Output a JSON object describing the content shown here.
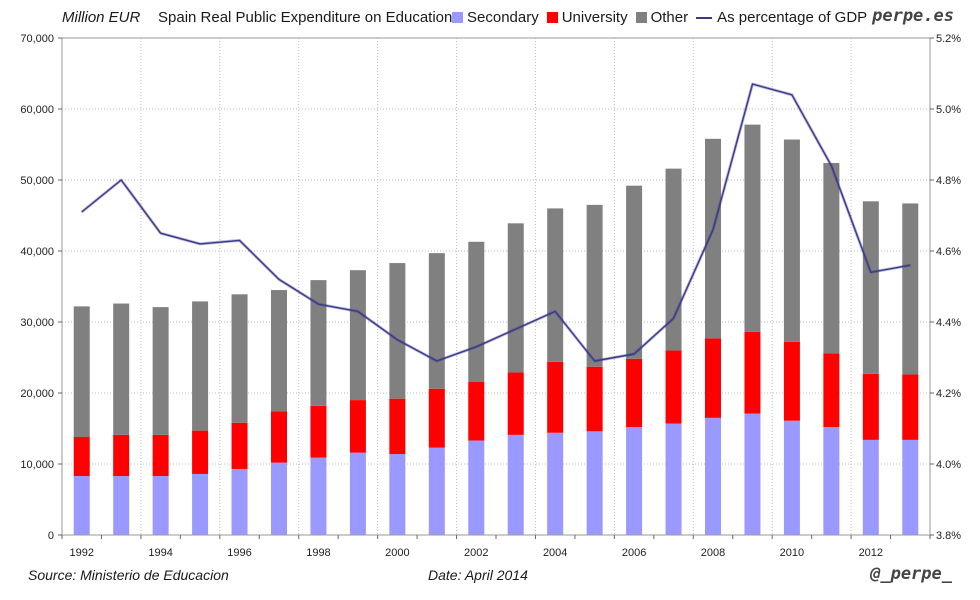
{
  "header": {
    "unit": "Million EUR",
    "title": "Spain Real Public Expenditure on Education",
    "brand": "perpe.es"
  },
  "footer": {
    "source": "Source: Ministerio de Educacion",
    "date": "Date: April 2014",
    "handle": "@_perpe_"
  },
  "legend": [
    {
      "label": "Secondary"
    },
    {
      "label": "University"
    },
    {
      "label": "Other"
    },
    {
      "label": "As percentage of GDP"
    }
  ],
  "colors": {
    "secondary": "#9999ff",
    "university": "#ff0000",
    "other": "#808080",
    "gdp_line": "#3a3a8c",
    "grid": "#bdbdbd"
  },
  "chart_data": {
    "type": "bar",
    "stacked": true,
    "title": "Spain Real Public Expenditure on Education",
    "ylabel": "Million EUR",
    "ylim": [
      0,
      70000
    ],
    "y_ticks": [
      "0",
      "10,000",
      "20,000",
      "30,000",
      "40,000",
      "50,000",
      "60,000",
      "70,000"
    ],
    "y2lim": [
      3.8,
      5.2
    ],
    "y2_ticks": [
      "3.8%",
      "4.0%",
      "4.2%",
      "4.4%",
      "4.6%",
      "4.8%",
      "5.0%",
      "5.2%"
    ],
    "x_tick_labels": [
      "1992",
      "1994",
      "1996",
      "1998",
      "2000",
      "2002",
      "2004",
      "2006",
      "2008",
      "2010",
      "2012"
    ],
    "categories": [
      1992,
      1993,
      1994,
      1995,
      1996,
      1997,
      1998,
      1999,
      2000,
      2001,
      2002,
      2003,
      2004,
      2005,
      2006,
      2007,
      2008,
      2009,
      2010,
      2011,
      2012,
      2013
    ],
    "series": [
      {
        "name": "Secondary",
        "values": [
          8300,
          8300,
          8300,
          8600,
          9300,
          10200,
          10900,
          11600,
          11400,
          12300,
          13300,
          14100,
          14400,
          14600,
          15200,
          15700,
          16500,
          17100,
          16100,
          15200,
          13400,
          13400
        ]
      },
      {
        "name": "University",
        "values": [
          5500,
          5800,
          5800,
          6100,
          6500,
          7200,
          7300,
          7400,
          7800,
          8300,
          8300,
          8800,
          10000,
          9100,
          9600,
          10300,
          11200,
          11500,
          11100,
          10400,
          9300,
          9200
        ]
      },
      {
        "name": "Other",
        "values": [
          18400,
          18500,
          18000,
          18200,
          18100,
          17100,
          17700,
          18300,
          19100,
          19100,
          19700,
          21000,
          21600,
          22800,
          24400,
          25600,
          28100,
          29200,
          28500,
          26800,
          24300,
          24100
        ]
      },
      {
        "name": "As percentage of GDP",
        "axis": "right",
        "type": "line",
        "values": [
          4.71,
          4.8,
          4.65,
          4.62,
          4.63,
          4.52,
          4.45,
          4.43,
          4.35,
          4.29,
          4.33,
          4.38,
          4.43,
          4.29,
          4.31,
          4.41,
          4.66,
          5.07,
          5.04,
          4.84,
          4.54,
          4.56
        ]
      }
    ]
  }
}
